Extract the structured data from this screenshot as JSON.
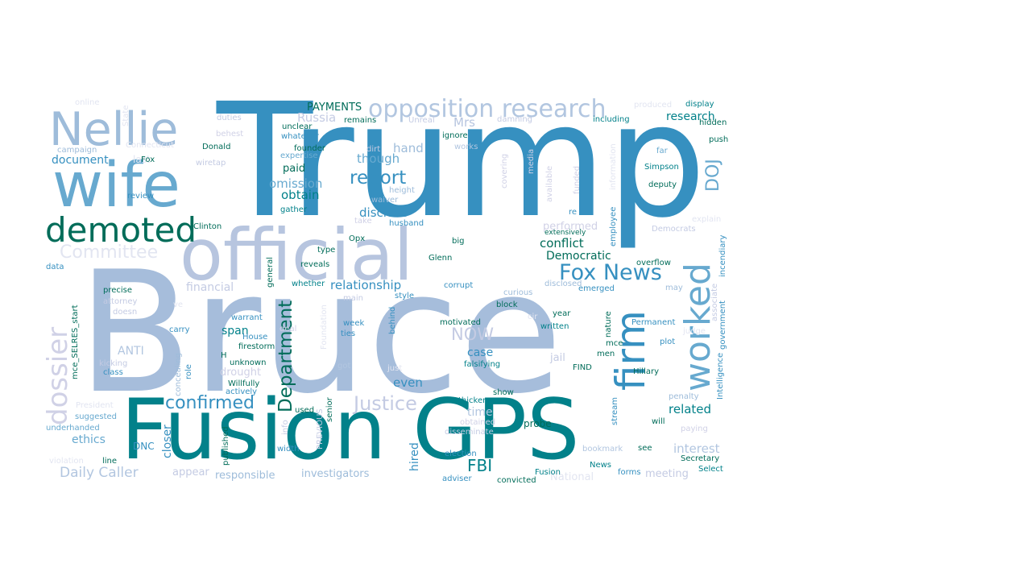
{
  "cloud": {
    "words": [
      {
        "text": "Bruce",
        "color": "#a6bddb"
      },
      {
        "text": "Trump",
        "color": "#3690c0"
      },
      {
        "text": "Fusion GPS",
        "color": "#02818a"
      },
      {
        "text": "official",
        "color": "#b7c5df"
      },
      {
        "text": "wife",
        "color": "#67a9cf"
      },
      {
        "text": "Nellie",
        "color": "#9ebcda"
      },
      {
        "text": "demoted",
        "color": "#016c59"
      },
      {
        "text": "worked",
        "color": "#67a9cf"
      },
      {
        "text": "firm",
        "color": "#3690c0"
      },
      {
        "text": "opposition research",
        "color": "#b2c6e0"
      },
      {
        "text": "dossier",
        "color": "#d0d1e6"
      },
      {
        "text": "Fox News",
        "color": "#3690c0"
      },
      {
        "text": "Justice",
        "color": "#c4cbe3"
      },
      {
        "text": "confirmed",
        "color": "#3690c0"
      },
      {
        "text": "Department",
        "color": "#016c59"
      },
      {
        "text": "report",
        "color": "#3690c0"
      },
      {
        "text": "Committee",
        "color": "#e2e5f1"
      },
      {
        "text": "NOW",
        "color": "#c4cbe3"
      },
      {
        "text": "FBI",
        "color": "#02818a"
      },
      {
        "text": "DOJ",
        "color": "#67a9cf"
      },
      {
        "text": "Daily Caller",
        "color": "#b2c6e0"
      },
      {
        "text": "even",
        "color": "#3690c0"
      },
      {
        "text": "related",
        "color": "#02818a"
      },
      {
        "text": "interest",
        "color": "#b2c6e0"
      },
      {
        "text": "conflict",
        "color": "#016c59"
      },
      {
        "text": "Democratic",
        "color": "#016c59"
      },
      {
        "text": "relationship",
        "color": "#3690c0"
      },
      {
        "text": "disclose",
        "color": "#3690c0"
      },
      {
        "text": "PAYMENTS",
        "color": "#016c59"
      },
      {
        "text": "research",
        "color": "#02818a"
      },
      {
        "text": "document",
        "color": "#3690c0"
      },
      {
        "text": "omission",
        "color": "#67a9cf"
      },
      {
        "text": "obtain",
        "color": "#02818a"
      },
      {
        "text": "paid",
        "color": "#016c59"
      },
      {
        "text": "though",
        "color": "#67a9cf"
      },
      {
        "text": "hand",
        "color": "#9ebcda"
      },
      {
        "text": "Mrs",
        "color": "#b7c5df"
      },
      {
        "text": "Russia",
        "color": "#c4cbe3"
      },
      {
        "text": "financial",
        "color": "#c4cbe3"
      },
      {
        "text": "ANTI",
        "color": "#b2c6e0"
      },
      {
        "text": "span",
        "color": "#02818a"
      },
      {
        "text": "ethics",
        "color": "#67a9cf"
      },
      {
        "text": "case",
        "color": "#3690c0"
      },
      {
        "text": "time",
        "color": "#b2c6e0"
      },
      {
        "text": "hired",
        "color": "#3690c0"
      },
      {
        "text": "closer",
        "color": "#3690c0"
      },
      {
        "text": "investigators",
        "color": "#9ebcda"
      },
      {
        "text": "responsible",
        "color": "#9ebcda"
      },
      {
        "text": "appear",
        "color": "#c4cbe3"
      },
      {
        "text": "meeting",
        "color": "#c4cbe3"
      },
      {
        "text": "performed",
        "color": "#d0d1e6"
      },
      {
        "text": "drought",
        "color": "#d0d1e6"
      },
      {
        "text": "jail",
        "color": "#c4cbe3"
      },
      {
        "text": "probe",
        "color": "#016c59"
      },
      {
        "text": "National",
        "color": "#e2e5f1"
      },
      {
        "text": "DNC",
        "color": "#3690c0"
      },
      {
        "text": "online",
        "color": "#e2e5f1"
      },
      {
        "text": "duties",
        "color": "#c4cbe3"
      },
      {
        "text": "behest",
        "color": "#d0d1e6"
      },
      {
        "text": "unclear",
        "color": "#016c59"
      },
      {
        "text": "whatever",
        "color": "#3690c0"
      },
      {
        "text": "founder",
        "color": "#016c59"
      },
      {
        "text": "expertise",
        "color": "#67a9cf"
      },
      {
        "text": "Donald",
        "color": "#016c59"
      },
      {
        "text": "remains",
        "color": "#016c59"
      },
      {
        "text": "Unreal",
        "color": "#c4cbe3"
      },
      {
        "text": "damning",
        "color": "#c4cbe3"
      },
      {
        "text": "including",
        "color": "#02818a"
      },
      {
        "text": "produced",
        "color": "#e2e5f1"
      },
      {
        "text": "display",
        "color": "#02818a"
      },
      {
        "text": "hidden",
        "color": "#016c59"
      },
      {
        "text": "push",
        "color": "#016c59"
      },
      {
        "text": "far",
        "color": "#67a9cf"
      },
      {
        "text": "Simpson",
        "color": "#02818a"
      },
      {
        "text": "deputy",
        "color": "#016c59"
      },
      {
        "text": "ignore",
        "color": "#016c59"
      },
      {
        "text": "works",
        "color": "#b2c6e0"
      },
      {
        "text": "dirt",
        "color": "#c4cbe3"
      },
      {
        "text": "height",
        "color": "#9ebcda"
      },
      {
        "text": "waiver",
        "color": "#9ebcda"
      },
      {
        "text": "husband",
        "color": "#3690c0"
      },
      {
        "text": "take",
        "color": "#d0d1e6"
      },
      {
        "text": "gather",
        "color": "#02818a"
      },
      {
        "text": "campaign",
        "color": "#9ebcda"
      },
      {
        "text": "last",
        "color": "#e2e5f1"
      },
      {
        "text": "wiretap",
        "color": "#c4cbe3"
      },
      {
        "text": "Fox",
        "color": "#016c59"
      },
      {
        "text": "review",
        "color": "#3690c0"
      },
      {
        "text": "Clinton",
        "color": "#016c59"
      },
      {
        "text": "Opx",
        "color": "#016c59"
      },
      {
        "text": "type",
        "color": "#016c59"
      },
      {
        "text": "reveals",
        "color": "#016c59"
      },
      {
        "text": "big",
        "color": "#016c59"
      },
      {
        "text": "Glenn",
        "color": "#016c59"
      },
      {
        "text": "corrupt",
        "color": "#3690c0"
      },
      {
        "text": "whether",
        "color": "#02818a"
      },
      {
        "text": "precise",
        "color": "#016c59"
      },
      {
        "text": "attorney",
        "color": "#c4cbe3"
      },
      {
        "text": "doesn",
        "color": "#c4cbe3"
      },
      {
        "text": "carry",
        "color": "#3690c0"
      },
      {
        "text": "data",
        "color": "#3690c0"
      },
      {
        "text": "warrant",
        "color": "#3690c0"
      },
      {
        "text": "House",
        "color": "#3690c0"
      },
      {
        "text": "firestorm",
        "color": "#016c59"
      },
      {
        "text": "unknown",
        "color": "#016c59"
      },
      {
        "text": "Willfully",
        "color": "#016c59"
      },
      {
        "text": "actively",
        "color": "#3690c0"
      },
      {
        "text": "kicking",
        "color": "#c4cbe3"
      },
      {
        "text": "class",
        "color": "#3690c0"
      },
      {
        "text": "concealing",
        "color": "#9ebcda"
      },
      {
        "text": "role",
        "color": "#3690c0"
      },
      {
        "text": "deal",
        "color": "#d0d1e6"
      },
      {
        "text": "week",
        "color": "#3690c0"
      },
      {
        "text": "ties",
        "color": "#3690c0"
      },
      {
        "text": "motivated",
        "color": "#016c59"
      },
      {
        "text": "falsifying",
        "color": "#02818a"
      },
      {
        "text": "got",
        "color": "#b2c6e0"
      },
      {
        "text": "just",
        "color": "#e2e5f1"
      },
      {
        "text": "show",
        "color": "#016c59"
      },
      {
        "text": "thickens",
        "color": "#02818a"
      },
      {
        "text": "obtained",
        "color": "#d0d1e6"
      },
      {
        "text": "disseminate",
        "color": "#c4cbe3"
      },
      {
        "text": "election",
        "color": "#3690c0"
      },
      {
        "text": "adviser",
        "color": "#3690c0"
      },
      {
        "text": "convicted",
        "color": "#016c59"
      },
      {
        "text": "Fusion",
        "color": "#02818a"
      },
      {
        "text": "News",
        "color": "#02818a"
      },
      {
        "text": "forms",
        "color": "#3690c0"
      },
      {
        "text": "bookmark",
        "color": "#b2c6e0"
      },
      {
        "text": "see",
        "color": "#016c59"
      },
      {
        "text": "will",
        "color": "#016c59"
      },
      {
        "text": "Secretary",
        "color": "#016c59"
      },
      {
        "text": "Select",
        "color": "#02818a"
      },
      {
        "text": "paying",
        "color": "#d0d1e6"
      },
      {
        "text": "penalty",
        "color": "#9ebcda"
      },
      {
        "text": "Hillary",
        "color": "#016c59"
      },
      {
        "text": "FIND",
        "color": "#016c59"
      },
      {
        "text": "men",
        "color": "#016c59"
      },
      {
        "text": "mce",
        "color": "#016c59"
      },
      {
        "text": "plot",
        "color": "#3690c0"
      },
      {
        "text": "Permanent",
        "color": "#3690c0"
      },
      {
        "text": "judge",
        "color": "#e2e5f1"
      },
      {
        "text": "overflow",
        "color": "#016c59"
      },
      {
        "text": "may",
        "color": "#9ebcda"
      },
      {
        "text": "Democrats",
        "color": "#c4cbe3"
      },
      {
        "text": "explain",
        "color": "#e2e5f1"
      },
      {
        "text": "emerged",
        "color": "#3690c0"
      },
      {
        "text": "disclosed",
        "color": "#9ebcda"
      },
      {
        "text": "curious",
        "color": "#9ebcda"
      },
      {
        "text": "block",
        "color": "#016c59"
      },
      {
        "text": "year",
        "color": "#016c59"
      },
      {
        "text": "written",
        "color": "#02818a"
      },
      {
        "text": "extensively",
        "color": "#016c59"
      },
      {
        "text": "re",
        "color": "#3690c0"
      },
      {
        "text": "style",
        "color": "#3690c0"
      },
      {
        "text": "main",
        "color": "#c4cbe3"
      },
      {
        "text": "suggested",
        "color": "#67a9cf"
      },
      {
        "text": "underhanded",
        "color": "#67a9cf"
      },
      {
        "text": "President",
        "color": "#e2e5f1"
      },
      {
        "text": "violation",
        "color": "#e2e5f1"
      },
      {
        "text": "line",
        "color": "#016c59"
      },
      {
        "text": "width",
        "color": "#3690c0"
      },
      {
        "text": "used",
        "color": "#016c59"
      },
      {
        "text": "Connecticut",
        "color": "#e2e5f1"
      },
      {
        "text": "State",
        "color": "#e2e5f1"
      },
      {
        "text": "mce_SELRES_start",
        "color": "#016c59"
      },
      {
        "text": "general",
        "color": "#016c59"
      },
      {
        "text": "behind",
        "color": "#3690c0"
      },
      {
        "text": "Foundation",
        "color": "#e2e5f1"
      },
      {
        "text": "info",
        "color": "#c4cbe3"
      },
      {
        "text": "published",
        "color": "#016c59"
      },
      {
        "text": "PREVIOUS",
        "color": "#c4cbe3"
      },
      {
        "text": "senior",
        "color": "#016c59"
      },
      {
        "text": "covering",
        "color": "#d0d1e6"
      },
      {
        "text": "available",
        "color": "#d0d1e6"
      },
      {
        "text": "funded",
        "color": "#d0d1e6"
      },
      {
        "text": "media",
        "color": "#d0d1e6"
      },
      {
        "text": "information",
        "color": "#e2e5f1"
      },
      {
        "text": "employee",
        "color": "#3690c0"
      },
      {
        "text": "nature",
        "color": "#016c59"
      },
      {
        "text": "stream",
        "color": "#3690c0"
      },
      {
        "text": "associate",
        "color": "#c4cbe3"
      },
      {
        "text": "Intelligence",
        "color": "#3690c0"
      },
      {
        "text": "government",
        "color": "#3690c0"
      },
      {
        "text": "incendiary",
        "color": "#3690c0"
      },
      {
        "text": "H",
        "color": "#016c59"
      },
      {
        "text": "ve",
        "color": "#e2e5f1"
      },
      {
        "text": "cir",
        "color": "#e2e5f1"
      }
    ]
  }
}
